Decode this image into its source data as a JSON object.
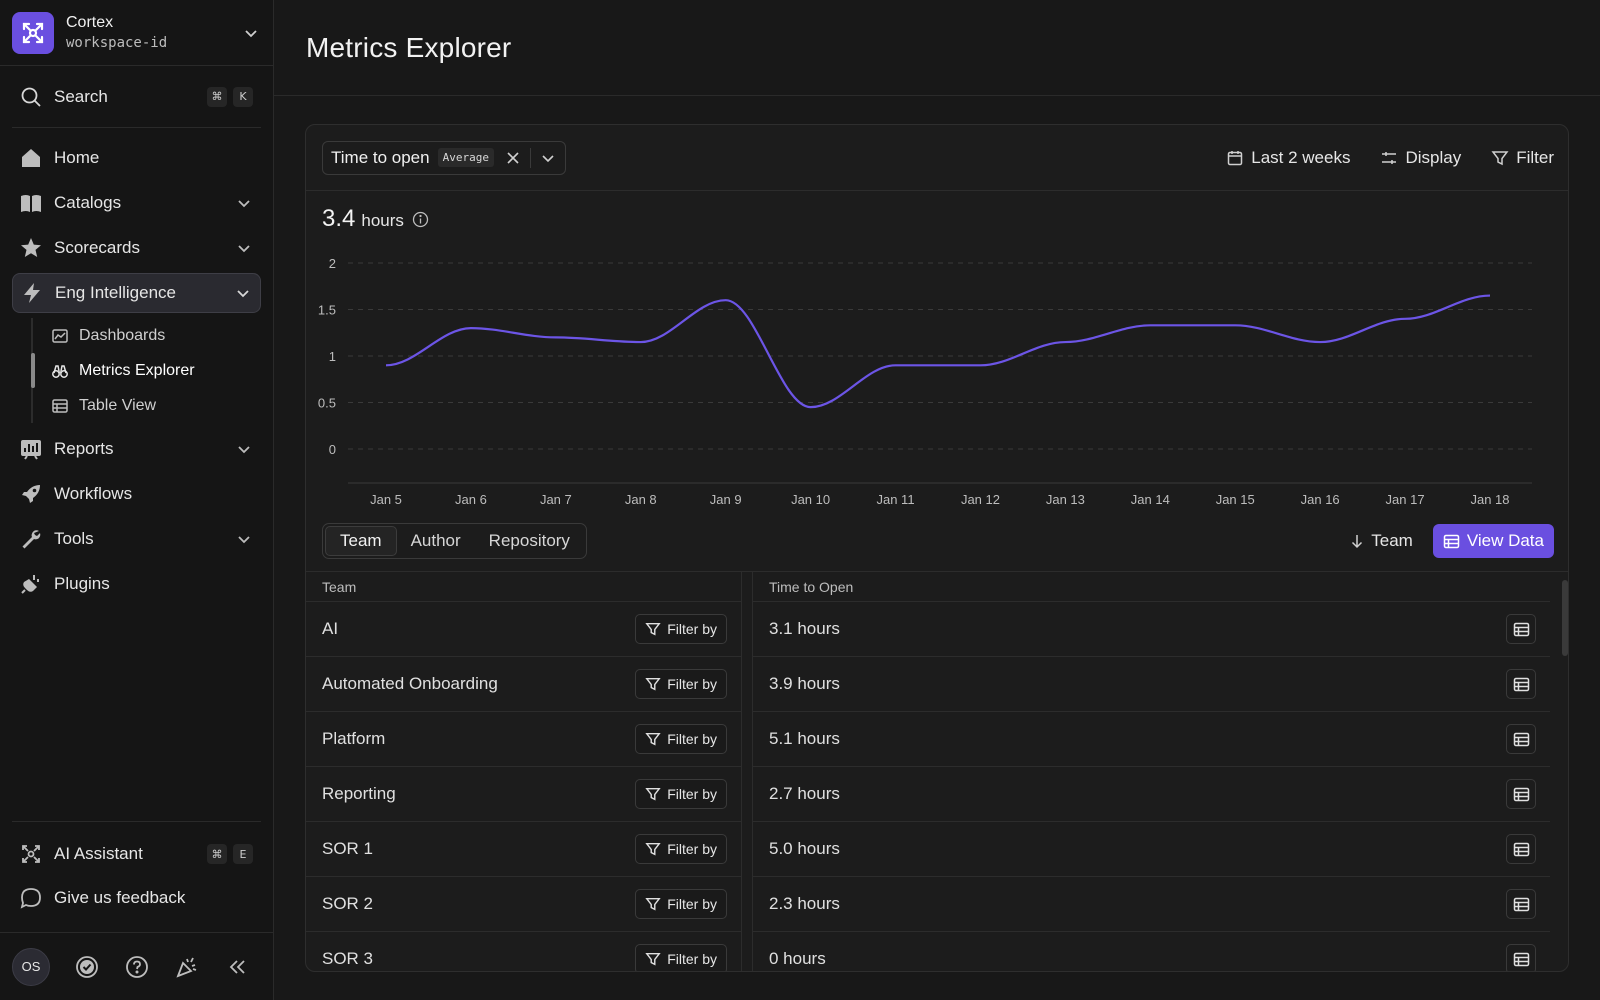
{
  "workspace": {
    "name": "Cortex",
    "id": "workspace-id"
  },
  "search": {
    "label": "Search",
    "shortcut": [
      "⌘",
      "K"
    ]
  },
  "nav": {
    "home": "Home",
    "catalogs": "Catalogs",
    "scorecards": "Scorecards",
    "eng_intelligence": "Eng Intelligence",
    "sub": {
      "dashboards": "Dashboards",
      "metrics_explorer": "Metrics Explorer",
      "table_view": "Table View"
    },
    "reports": "Reports",
    "workflows": "Workflows",
    "tools": "Tools",
    "plugins": "Plugins"
  },
  "bottom": {
    "ai_assistant": "AI Assistant",
    "ai_shortcut": [
      "⌘",
      "E"
    ],
    "feedback": "Give us feedback",
    "avatar": "OS"
  },
  "page": {
    "title": "Metrics Explorer"
  },
  "metric": {
    "name": "Time to open",
    "aggregation": "Average"
  },
  "actions": {
    "range": "Last 2 weeks",
    "display": "Display",
    "filter": "Filter"
  },
  "summary": {
    "value": "3.4",
    "unit": "hours"
  },
  "chart_data": {
    "type": "line",
    "categories": [
      "Jan 5",
      "Jan 6",
      "Jan 7",
      "Jan 8",
      "Jan 9",
      "Jan 10",
      "Jan 11",
      "Jan 12",
      "Jan 13",
      "Jan 14",
      "Jan 15",
      "Jan 16",
      "Jan 17",
      "Jan 18"
    ],
    "y_ticks": [
      "2",
      "1.5",
      "1",
      "0.5",
      "0"
    ],
    "ylim": [
      0,
      2
    ],
    "values": [
      0.9,
      1.3,
      1.2,
      1.15,
      1.6,
      0.45,
      0.9,
      0.9,
      1.15,
      1.33,
      1.33,
      1.15,
      1.4,
      1.65
    ],
    "line_color": "#6c55e6",
    "grid": true
  },
  "grouping": {
    "tabs": [
      "Team",
      "Author",
      "Repository"
    ],
    "active": "Team",
    "sort_label": "Team",
    "view_data": "View Data"
  },
  "table": {
    "col_left": "Team",
    "col_right": "Time to Open",
    "filter_label": "Filter by",
    "rows": [
      {
        "team": "AI",
        "value": "3.1 hours"
      },
      {
        "team": "Automated Onboarding",
        "value": "3.9 hours"
      },
      {
        "team": "Platform",
        "value": "5.1 hours"
      },
      {
        "team": "Reporting",
        "value": "2.7 hours"
      },
      {
        "team": "SOR 1",
        "value": "5.0 hours"
      },
      {
        "team": "SOR 2",
        "value": "2.3 hours"
      },
      {
        "team": "SOR 3",
        "value": "0 hours"
      }
    ]
  },
  "colors": {
    "accent": "#6a4fe0",
    "background": "#181818"
  }
}
